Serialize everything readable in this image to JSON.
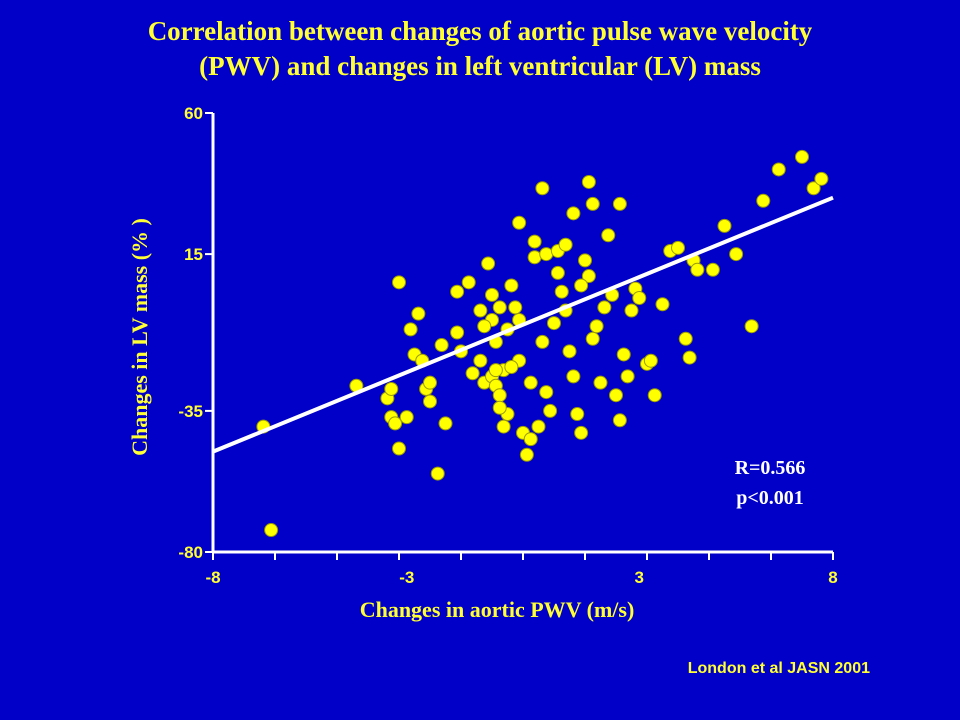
{
  "title_line1": "Correlation between changes of aortic pulse wave velocity",
  "title_line2": "(PWV) and changes in left ventricular (LV) mass",
  "credit": "London et al JASN 2001",
  "colors": {
    "background": "#0000c8",
    "text": "#ffff33",
    "point": "#ffff00",
    "axis": "#ffffff",
    "regression": "#ffffff"
  },
  "chart_data": {
    "type": "scatter",
    "title": "Correlation between changes of aortic pulse wave velocity (PWV) and changes in left ventricular (LV) mass",
    "xlabel": "Changes in aortic PWV (m/s)",
    "ylabel": "Changes in LV mass (% )",
    "xlim": [
      -8,
      8
    ],
    "ylim": [
      -80,
      60
    ],
    "xticks": [
      -8,
      -3,
      3,
      8
    ],
    "yticks": [
      60,
      15,
      -35,
      -80
    ],
    "annotation_r": "R=0.566",
    "annotation_p": "p<0.001",
    "regression_line": {
      "x": [
        -8,
        8
      ],
      "y": [
        -48,
        33
      ]
    },
    "points": [
      [
        -6.7,
        -40
      ],
      [
        -6.5,
        -73
      ],
      [
        -4.3,
        -27
      ],
      [
        -3.5,
        -31
      ],
      [
        -3.4,
        -28
      ],
      [
        -3.4,
        -37
      ],
      [
        -3.3,
        -39
      ],
      [
        -3.2,
        -47
      ],
      [
        -3.2,
        6
      ],
      [
        -3.0,
        -37
      ],
      [
        -2.8,
        -17
      ],
      [
        -2.6,
        -19
      ],
      [
        -2.5,
        -28
      ],
      [
        -2.4,
        -32
      ],
      [
        -2.4,
        -26
      ],
      [
        -2.2,
        -55
      ],
      [
        -2.1,
        -14
      ],
      [
        -2.0,
        -39
      ],
      [
        -1.7,
        -10
      ],
      [
        -1.6,
        -16
      ],
      [
        -1.4,
        6
      ],
      [
        -1.3,
        -23
      ],
      [
        -1.1,
        -19
      ],
      [
        -1.0,
        -26
      ],
      [
        -0.9,
        12
      ],
      [
        -0.8,
        2
      ],
      [
        -0.8,
        -24
      ],
      [
        -0.7,
        -27
      ],
      [
        -0.7,
        -13
      ],
      [
        -0.6,
        -30
      ],
      [
        -0.5,
        -22
      ],
      [
        -0.4,
        -9
      ],
      [
        -0.3,
        5
      ],
      [
        -0.2,
        -2
      ],
      [
        -0.1,
        -6
      ],
      [
        -0.1,
        -19
      ],
      [
        0.0,
        -42
      ],
      [
        0.1,
        -49
      ],
      [
        0.2,
        -44
      ],
      [
        0.2,
        -26
      ],
      [
        -0.3,
        -21
      ],
      [
        -0.4,
        -36
      ],
      [
        -0.5,
        -40
      ],
      [
        -0.6,
        -2
      ],
      [
        -0.7,
        -22
      ],
      [
        -0.8,
        -6
      ],
      [
        -1.0,
        -8
      ],
      [
        -0.6,
        -34
      ],
      [
        0.3,
        14
      ],
      [
        0.4,
        -40
      ],
      [
        0.5,
        -13
      ],
      [
        0.6,
        -29
      ],
      [
        0.7,
        -35
      ],
      [
        0.8,
        -7
      ],
      [
        0.9,
        9
      ],
      [
        1.0,
        3
      ],
      [
        1.1,
        -3
      ],
      [
        1.2,
        -16
      ],
      [
        1.3,
        -24
      ],
      [
        1.4,
        -36
      ],
      [
        1.5,
        -42
      ],
      [
        1.6,
        13
      ],
      [
        1.7,
        8
      ],
      [
        1.8,
        -12
      ],
      [
        1.9,
        -8
      ],
      [
        2.0,
        -26
      ],
      [
        2.1,
        -2
      ],
      [
        2.2,
        21
      ],
      [
        2.3,
        2
      ],
      [
        2.4,
        -30
      ],
      [
        2.5,
        -38
      ],
      [
        2.6,
        -17
      ],
      [
        2.7,
        -24
      ],
      [
        2.8,
        -3
      ],
      [
        2.9,
        4
      ],
      [
        3.0,
        1
      ],
      [
        3.2,
        -20
      ],
      [
        3.3,
        -19
      ],
      [
        3.4,
        -30
      ],
      [
        3.6,
        -1
      ],
      [
        3.8,
        16
      ],
      [
        4.0,
        17
      ],
      [
        4.2,
        -12
      ],
      [
        4.3,
        -18
      ],
      [
        4.4,
        13
      ],
      [
        4.5,
        10
      ],
      [
        4.9,
        10
      ],
      [
        5.2,
        24
      ],
      [
        5.5,
        15
      ],
      [
        5.9,
        -8
      ],
      [
        6.2,
        32
      ],
      [
        6.6,
        42
      ],
      [
        7.2,
        46
      ],
      [
        7.5,
        36
      ],
      [
        7.7,
        39
      ],
      [
        1.7,
        38
      ],
      [
        2.5,
        31
      ],
      [
        0.5,
        36
      ],
      [
        1.3,
        28
      ],
      [
        1.8,
        31
      ],
      [
        -0.1,
        25
      ],
      [
        0.3,
        19
      ],
      [
        0.6,
        15
      ],
      [
        0.9,
        16
      ],
      [
        1.1,
        18
      ],
      [
        -1.7,
        3
      ],
      [
        -2.9,
        -9
      ],
      [
        -2.7,
        -4
      ],
      [
        -1.1,
        -3
      ],
      [
        1.5,
        5
      ]
    ]
  }
}
